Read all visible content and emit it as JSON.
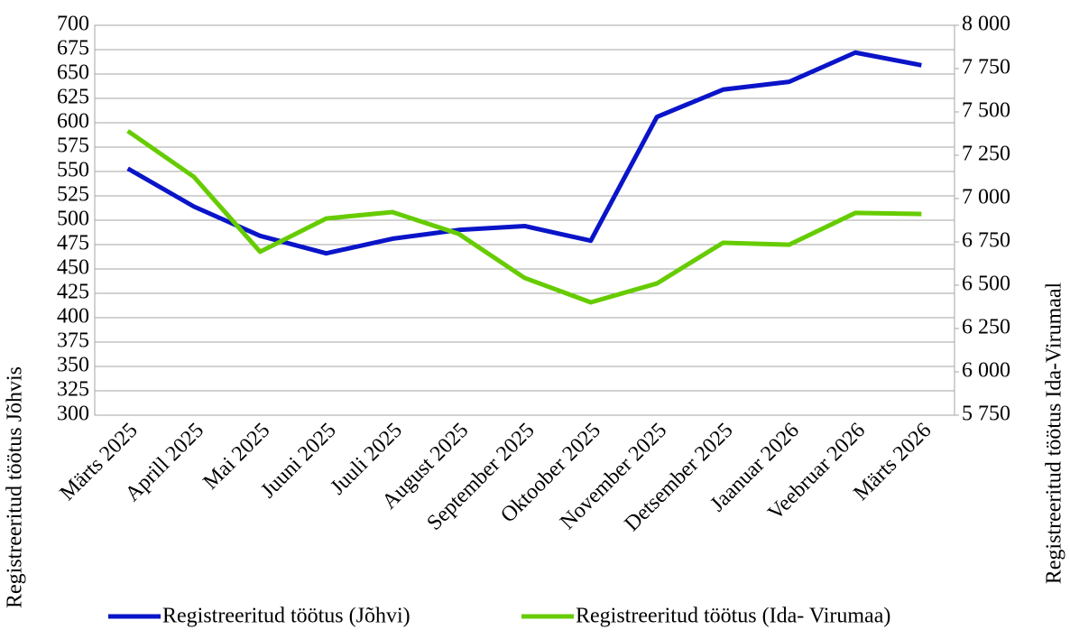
{
  "chart_data": {
    "type": "line",
    "categories": [
      "Märts 2025",
      "Aprill 2025",
      "Mai 2025",
      "Juuni 2025",
      "Juuli 2025",
      "August 2025",
      "September 2025",
      "Oktoober 2025",
      "November 2025",
      "Detsember 2025",
      "Jaanuar 2026",
      "Veebruar 2026",
      "Märts 2026"
    ],
    "series": [
      {
        "name": "Registreeritud töötus (Jõhvi)",
        "color": "#0a14c8",
        "values": [
          553,
          514,
          484,
          466,
          481,
          490,
          494,
          479,
          606,
          634,
          642,
          672,
          659
        ]
      },
      {
        "name": "Registreeritud töötus (Ida- Virumaa)",
        "color": "#66cc00",
        "axis": "y2",
        "values": [
          7390,
          7125,
          6693,
          6885,
          6922,
          6797,
          6542,
          6401,
          6510,
          6745,
          6734,
          6917,
          6911
        ]
      }
    ],
    "ylabel": "Registreeritud töötus Jõhvis",
    "y2label": "Registreeritud töötus Ida-Virumaal",
    "ylim": [
      300,
      700
    ],
    "yticks": [
      300,
      325,
      350,
      375,
      400,
      425,
      450,
      475,
      500,
      525,
      550,
      575,
      600,
      625,
      650,
      675,
      700
    ],
    "y2lim": [
      5750,
      8000
    ],
    "y2ticks": [
      {
        "value": 5750,
        "label": "5 750"
      },
      {
        "value": 6000,
        "label": "6 000"
      },
      {
        "value": 6250,
        "label": "6 250"
      },
      {
        "value": 6500,
        "label": "6 500"
      },
      {
        "value": 6750,
        "label": "6 750"
      },
      {
        "value": 7000,
        "label": "7 000"
      },
      {
        "value": 7250,
        "label": "7 250"
      },
      {
        "value": 7500,
        "label": "7 500"
      },
      {
        "value": 7750,
        "label": "7 750"
      },
      {
        "value": 8000,
        "label": "8 000"
      }
    ],
    "grid": true
  }
}
